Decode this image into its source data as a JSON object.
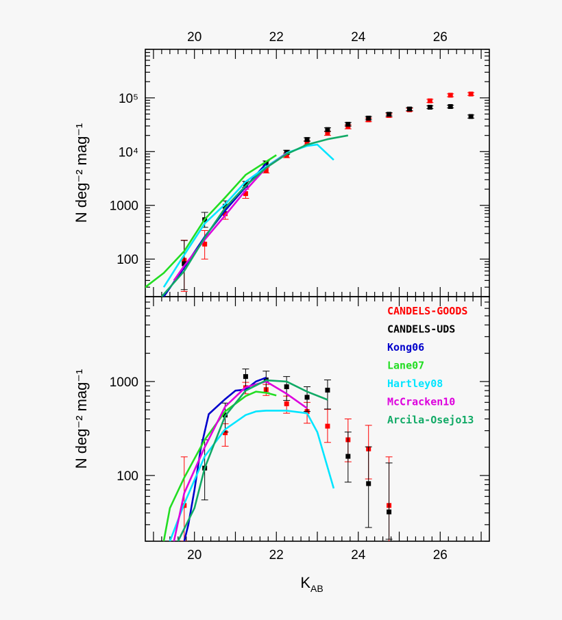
{
  "chart_data": [
    {
      "type": "scatter",
      "panel": "top",
      "title": "",
      "xlabel": "",
      "ylabel": "N deg⁻² mag⁻¹",
      "xlim": [
        18.8,
        27.2
      ],
      "ylim": [
        20,
        800000
      ],
      "yscale": "log",
      "x_ticks": [
        "20",
        "22",
        "24",
        "26"
      ],
      "y_ticks": [
        {
          "value": 100,
          "label": "100"
        },
        {
          "value": 1000,
          "label": "1000"
        },
        {
          "value": 10000,
          "label": "10⁴"
        },
        {
          "value": 100000,
          "label": "10⁵"
        }
      ],
      "series": [
        {
          "name": "CANDELS-GOODS",
          "kind": "points",
          "color": "#ff0000",
          "x": [
            19.75,
            20.25,
            20.75,
            21.25,
            21.75,
            22.25,
            22.75,
            23.25,
            23.75,
            24.25,
            24.75,
            25.25,
            25.75,
            26.25,
            26.75
          ],
          "y": [
            95,
            190,
            700,
            1650,
            4500,
            8500,
            14500,
            22000,
            29000,
            39000,
            47000,
            60000,
            88000,
            112000,
            118000
          ],
          "err_lo": [
            70,
            90,
            150,
            300,
            500,
            800,
            1200,
            2000,
            2500,
            3000,
            3500,
            4000,
            6000,
            7000,
            7000
          ],
          "err_hi": [
            130,
            150,
            200,
            350,
            600,
            900,
            1300,
            2000,
            2500,
            3000,
            3500,
            4000,
            6000,
            7000,
            7000
          ]
        },
        {
          "name": "CANDELS-UDS",
          "kind": "points",
          "color": "#000000",
          "x": [
            19.75,
            20.25,
            20.75,
            21.25,
            21.75,
            22.25,
            22.75,
            23.25,
            23.75,
            24.25,
            24.75,
            25.25,
            25.75,
            26.25,
            26.75
          ],
          "y": [
            82,
            540,
            960,
            2450,
            6100,
            9700,
            16800,
            25700,
            32300,
            42000,
            49500,
            62000,
            67000,
            69000,
            45000
          ],
          "err_lo": [
            55,
            150,
            200,
            300,
            500,
            800,
            1200,
            2000,
            2500,
            3000,
            3500,
            4000,
            4000,
            4000,
            3000
          ],
          "err_hi": [
            140,
            200,
            250,
            350,
            600,
            900,
            1300,
            2000,
            2500,
            3000,
            3500,
            4000,
            4000,
            4000,
            3000
          ]
        },
        {
          "name": "Kong06",
          "kind": "line",
          "color": "#0000cc",
          "x": [
            19.25,
            19.75,
            20.25,
            20.75,
            21.25,
            21.75
          ],
          "y": [
            20,
            70,
            260,
            800,
            2200,
            6000
          ]
        },
        {
          "name": "Lane07",
          "kind": "line",
          "color": "#22dd22",
          "x": [
            18.75,
            19.25,
            19.75,
            20.25,
            20.75,
            21.25,
            21.75,
            22.0
          ],
          "y": [
            28,
            55,
            140,
            550,
            1400,
            3700,
            6500,
            8600
          ]
        },
        {
          "name": "Hartley08",
          "kind": "line",
          "color": "#00e5ff",
          "x": [
            19.25,
            19.75,
            20.25,
            20.75,
            21.25,
            21.75,
            22.25,
            22.75,
            23.0,
            23.4
          ],
          "y": [
            30,
            120,
            460,
            1050,
            2750,
            5200,
            9400,
            12800,
            13500,
            7000
          ]
        },
        {
          "name": "McCracken10",
          "kind": "line",
          "color": "#dd00dd",
          "x": [
            19.5,
            19.75,
            20.25,
            20.75,
            21.25,
            21.75,
            22.25
          ],
          "y": [
            40,
            75,
            230,
            650,
            1900,
            5000,
            9200
          ]
        },
        {
          "name": "Arcila-Osejo13",
          "kind": "line",
          "color": "#11aa66",
          "x": [
            19.2,
            19.75,
            20.25,
            20.75,
            21.25,
            21.75,
            22.25,
            22.75,
            23.25,
            23.75
          ],
          "y": [
            20,
            60,
            250,
            900,
            2300,
            5000,
            9000,
            13500,
            17000,
            20000
          ]
        }
      ]
    },
    {
      "type": "scatter",
      "panel": "bottom",
      "title": "",
      "xlabel": "KAB",
      "ylabel": "N deg⁻² mag⁻¹",
      "xlim": [
        18.8,
        27.2
      ],
      "ylim": [
        20,
        8000
      ],
      "yscale": "log",
      "x_ticks": [
        "20",
        "22",
        "24",
        "26"
      ],
      "y_ticks": [
        {
          "value": 100,
          "label": "100"
        },
        {
          "value": 1000,
          "label": "1000"
        }
      ],
      "series": [
        {
          "name": "CANDELS-GOODS",
          "kind": "points",
          "color": "#ff0000",
          "x": [
            19.75,
            20.75,
            21.25,
            21.75,
            22.25,
            22.75,
            23.25,
            23.75,
            24.25,
            24.75
          ],
          "y": [
            48,
            285,
            860,
            820,
            580,
            480,
            335,
            240,
            192,
            48
          ],
          "err_lo": [
            28,
            80,
            120,
            110,
            120,
            120,
            110,
            100,
            100,
            30
          ],
          "err_hi": [
            110,
            70,
            120,
            110,
            120,
            120,
            170,
            160,
            150,
            110
          ]
        },
        {
          "name": "CANDELS-UDS",
          "kind": "points",
          "color": "#000000",
          "x": [
            20.25,
            20.75,
            21.25,
            21.75,
            22.25,
            22.75,
            23.25,
            23.75,
            24.25,
            24.75
          ],
          "y": [
            120,
            440,
            1130,
            1040,
            880,
            680,
            810,
            160,
            82,
            41
          ],
          "err_lo": [
            65,
            150,
            300,
            280,
            250,
            200,
            300,
            75,
            54,
            20
          ],
          "err_hi": [
            120,
            150,
            230,
            250,
            250,
            200,
            230,
            130,
            120,
            95
          ]
        },
        {
          "name": "Kong06",
          "kind": "line",
          "color": "#0000cc",
          "x": [
            19.75,
            19.85,
            20.0,
            20.15,
            20.35,
            20.75,
            21.0,
            21.25,
            21.5,
            21.75
          ],
          "y": [
            20,
            30,
            70,
            190,
            450,
            650,
            800,
            820,
            1000,
            1100
          ]
        },
        {
          "name": "Lane07",
          "kind": "line",
          "color": "#22dd22",
          "x": [
            19.25,
            19.4,
            19.75,
            20.25,
            20.75,
            21.25,
            21.5,
            21.75,
            22.0
          ],
          "y": [
            20,
            45,
            95,
            240,
            480,
            700,
            780,
            760,
            710
          ]
        },
        {
          "name": "Hartley08",
          "kind": "line",
          "color": "#00e5ff",
          "x": [
            19.4,
            19.75,
            20.25,
            20.75,
            21.25,
            21.5,
            21.75,
            22.25,
            22.75,
            23.0,
            23.4
          ],
          "y": [
            20,
            50,
            160,
            310,
            440,
            480,
            490,
            490,
            460,
            290,
            73
          ]
        },
        {
          "name": "McCracken10",
          "kind": "line",
          "color": "#dd00dd",
          "x": [
            19.5,
            19.75,
            20.25,
            20.75,
            21.25,
            21.75,
            22.25,
            22.75
          ],
          "y": [
            20,
            65,
            200,
            540,
            870,
            1000,
            740,
            520
          ]
        },
        {
          "name": "Arcila-Osejo13",
          "kind": "line",
          "color": "#11aa66",
          "x": [
            19.6,
            20.0,
            20.25,
            20.75,
            21.25,
            21.75,
            22.25,
            22.75,
            23.25
          ],
          "y": [
            20,
            45,
            120,
            430,
            800,
            1030,
            1000,
            780,
            640
          ]
        }
      ]
    }
  ],
  "legend": {
    "entries": [
      {
        "label": "CANDELS-GOODS",
        "color": "#ff0000"
      },
      {
        "label": "CANDELS-UDS",
        "color": "#000000"
      },
      {
        "label": "Kong06",
        "color": "#0000cc"
      },
      {
        "label": "Lane07",
        "color": "#22dd22"
      },
      {
        "label": "Hartley08",
        "color": "#00e5ff"
      },
      {
        "label": "McCracken10",
        "color": "#dd00dd"
      },
      {
        "label": "Arcila-Osejo13",
        "color": "#11aa66"
      }
    ]
  }
}
